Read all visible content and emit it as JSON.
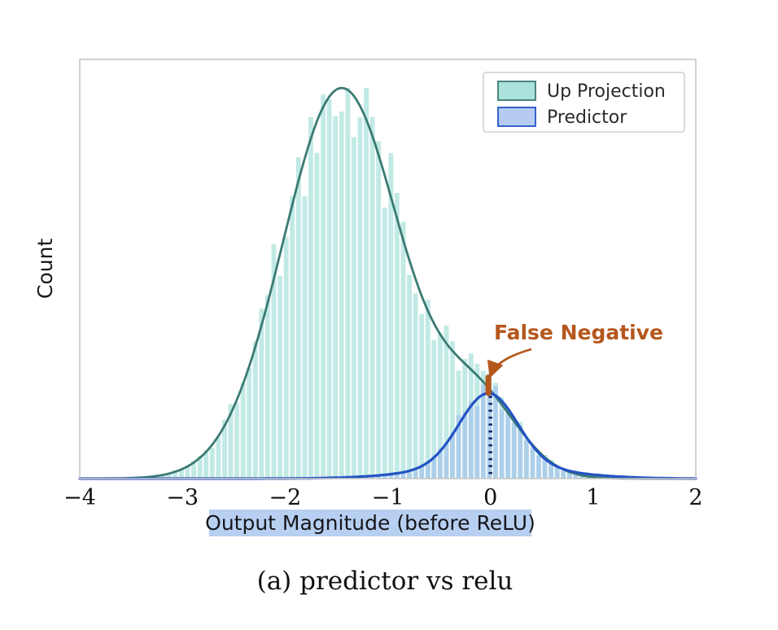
{
  "caption": "(a) predictor vs relu",
  "chart_data": {
    "type": "area",
    "subtype": "histogram_with_kde_overlay",
    "title": "",
    "xlabel": "Output Magnitude (before ReLU)",
    "ylabel": "Count",
    "xlim": [
      -4,
      2
    ],
    "xticks": [
      -4,
      -3,
      -2,
      -1,
      0,
      1,
      2
    ],
    "yticks": [],
    "grid": false,
    "legend_position": "upper right",
    "bin_width": 0.06,
    "series": [
      {
        "name": "Up Projection",
        "fill_color": "#8fd8cf",
        "line_color": "#3b7a72",
        "peak_x": -1.45,
        "peak_rel_height": 1.0,
        "components": [
          {
            "mean": -1.45,
            "std": 0.57,
            "amp": 0.97
          },
          {
            "mean": -0.12,
            "std": 0.4,
            "amp": 0.19
          }
        ]
      },
      {
        "name": "Predictor",
        "fill_color": "#9cb9ee",
        "line_color": "#2453c4",
        "peak_x": -0.02,
        "peak_rel_height": 0.22,
        "components": [
          {
            "mean": -0.02,
            "std": 0.28,
            "amp": 0.18
          },
          {
            "mean": 0.0,
            "std": 0.65,
            "amp": 0.032
          }
        ]
      }
    ],
    "vline": {
      "x": 0,
      "style": "dotted",
      "color": "#18246b"
    },
    "false_negative_marker": {
      "x": -0.02,
      "color": "#b5571d"
    },
    "annotation": {
      "text": "False Negative",
      "color": "#b5571d"
    },
    "xlabel_highlight_color": "#b7d0f2"
  }
}
